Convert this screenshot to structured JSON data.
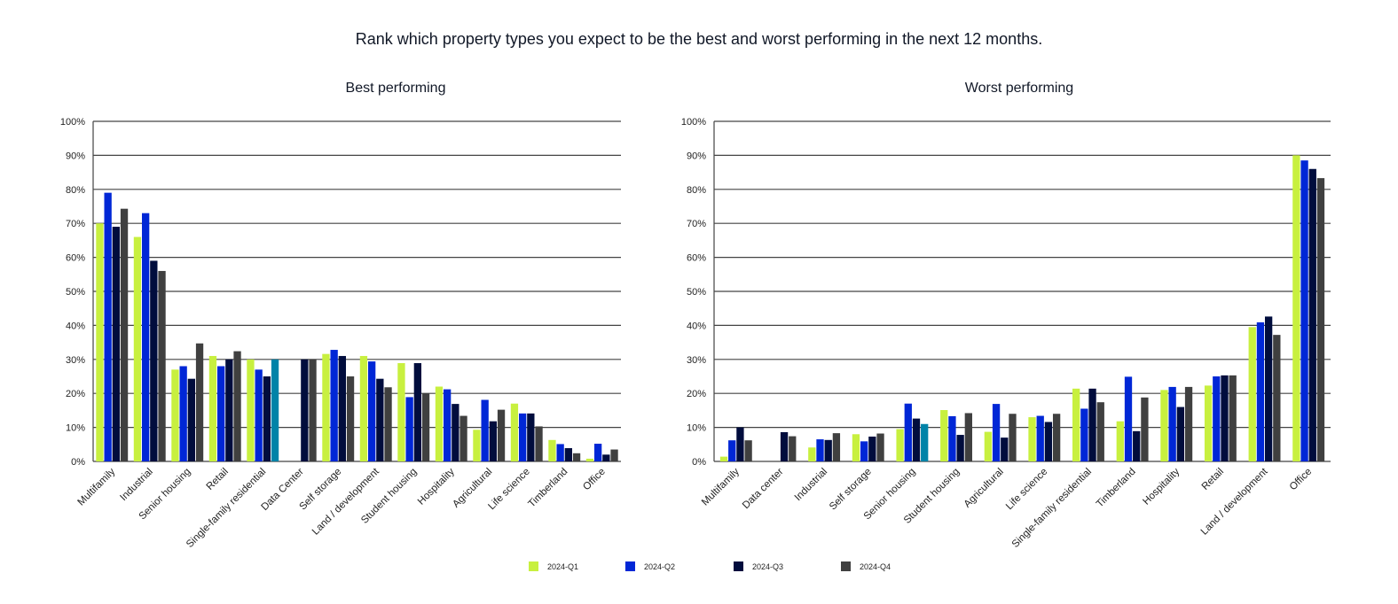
{
  "title": "Rank which property types you expect to be the best and worst performing in the next 12 months.",
  "colors": {
    "2024-Q1": "#c8f03f",
    "2024-Q2": "#0027d6",
    "2024-Q3": "#010d3d",
    "2024-Q4": "#404040",
    "highlight": "#0083a8"
  },
  "legend": [
    "2024-Q1",
    "2024-Q2",
    "2024-Q3",
    "2024-Q4"
  ],
  "chart_data": [
    {
      "type": "bar",
      "title": "Best performing",
      "ylim": [
        0,
        100
      ],
      "yticks": [
        "0%",
        "10%",
        "20%",
        "30%",
        "40%",
        "50%",
        "60%",
        "70%",
        "80%",
        "90%",
        "100%"
      ],
      "grid": true,
      "legend_placement": "bottom",
      "categories": [
        "Multifamily",
        "Industrial",
        "Senior housing",
        "Retail",
        "Single-family residential",
        "Data Center",
        "Self storage",
        "Land / development",
        "Student housing",
        "Hospitality",
        "Agricultural",
        "Life science",
        "Timberland",
        "Office"
      ],
      "highlight": {
        "category": "Single-family residential",
        "series": "2024-Q4"
      },
      "series": [
        {
          "name": "2024-Q1",
          "values": [
            70,
            66,
            27,
            31,
            30,
            null,
            31.6,
            31,
            28.9,
            22,
            9.3,
            17,
            6.3,
            0.8
          ]
        },
        {
          "name": "2024-Q2",
          "values": [
            79,
            73,
            28,
            28,
            27,
            null,
            32.8,
            29.4,
            18.9,
            21.2,
            18.1,
            14.1,
            5.1,
            5.2
          ]
        },
        {
          "name": "2024-Q3",
          "values": [
            69,
            59,
            24.3,
            30,
            25,
            30,
            31,
            24.3,
            28.9,
            16.9,
            11.8,
            14.1,
            3.9,
            2
          ]
        },
        {
          "name": "2024-Q4",
          "values": [
            74.3,
            56,
            34.7,
            32.4,
            30,
            30,
            25,
            21.8,
            20,
            13.4,
            15.2,
            10.3,
            2.4,
            3.5
          ]
        }
      ]
    },
    {
      "type": "bar",
      "title": "Worst performing",
      "ylim": [
        0,
        100
      ],
      "yticks": [
        "0%",
        "10%",
        "20%",
        "30%",
        "40%",
        "50%",
        "60%",
        "70%",
        "80%",
        "90%",
        "100%"
      ],
      "grid": true,
      "legend_placement": "bottom",
      "categories": [
        "Multifamily",
        "Data center",
        "Industrial",
        "Self storage",
        "Senior housing",
        "Student housing",
        "Agricultural",
        "Life science",
        "Single-family residential",
        "Timberland",
        "Hospitality",
        "Retail",
        "Land / development",
        "Office"
      ],
      "highlight": {
        "category": "Senior housing",
        "series": "2024-Q4"
      },
      "series": [
        {
          "name": "2024-Q1",
          "values": [
            1.4,
            null,
            4.1,
            8,
            9.5,
            15.1,
            8.7,
            13,
            21.4,
            11.8,
            21,
            22.3,
            39.5,
            90
          ]
        },
        {
          "name": "2024-Q2",
          "values": [
            6.2,
            null,
            6.5,
            5.9,
            17,
            13.3,
            16.9,
            13.4,
            15.5,
            24.9,
            21.9,
            25,
            40.9,
            88.5
          ]
        },
        {
          "name": "2024-Q3",
          "values": [
            10,
            8.6,
            6.3,
            7.3,
            12.6,
            7.8,
            7,
            11.6,
            21.4,
            8.9,
            16,
            25.3,
            42.6,
            86
          ]
        },
        {
          "name": "2024-Q4",
          "values": [
            6.2,
            7.4,
            8.3,
            8.2,
            11,
            14.2,
            14,
            14,
            17.4,
            18.8,
            21.9,
            25.3,
            37.2,
            83.3
          ]
        }
      ]
    }
  ]
}
